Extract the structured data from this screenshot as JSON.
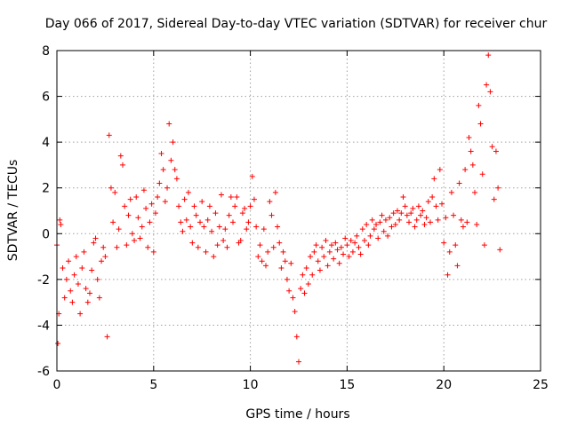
{
  "chart_data": {
    "type": "scatter",
    "title": "Day 066 of 2017, Sidereal Day-to-day VTEC variation (SDTVAR) for receiver chur",
    "xlabel": "GPS time / hours",
    "ylabel": "SDTVAR / TECUs",
    "xlim": [
      0,
      25
    ],
    "ylim": [
      -6,
      8
    ],
    "x_ticks": [
      0,
      5,
      10,
      15,
      20,
      25
    ],
    "y_ticks": [
      -6,
      -4,
      -2,
      0,
      2,
      4,
      6,
      8
    ],
    "x_tick_labels": [
      "0",
      "5",
      "10",
      "15",
      "20",
      "25"
    ],
    "y_tick_labels": [
      "-6",
      "-4",
      "-2",
      "0",
      "2",
      "4",
      "6",
      "8"
    ],
    "grid": true,
    "marker": "+",
    "color": "#ff0000",
    "series": [
      {
        "name": "SDTVAR",
        "x": [
          0.0,
          0.05,
          0.1,
          0.15,
          0.2,
          0.3,
          0.4,
          0.5,
          0.6,
          0.7,
          0.8,
          0.9,
          1.0,
          1.1,
          1.2,
          1.3,
          1.4,
          1.5,
          1.6,
          1.7,
          1.8,
          1.9,
          2.0,
          2.1,
          2.2,
          2.3,
          2.4,
          2.5,
          2.6,
          2.7,
          2.8,
          2.9,
          3.0,
          3.1,
          3.2,
          3.3,
          3.4,
          3.5,
          3.6,
          3.7,
          3.8,
          3.9,
          4.0,
          4.1,
          4.2,
          4.3,
          4.4,
          4.5,
          4.6,
          4.7,
          4.8,
          4.9,
          5.0,
          5.1,
          5.2,
          5.3,
          5.4,
          5.5,
          5.6,
          5.7,
          5.8,
          5.9,
          6.0,
          6.1,
          6.2,
          6.3,
          6.4,
          6.5,
          6.6,
          6.7,
          6.8,
          6.9,
          7.0,
          7.1,
          7.2,
          7.3,
          7.4,
          7.5,
          7.6,
          7.7,
          7.8,
          7.9,
          8.0,
          8.1,
          8.2,
          8.3,
          8.4,
          8.5,
          8.6,
          8.7,
          8.8,
          8.9,
          9.0,
          9.1,
          9.2,
          9.3,
          9.4,
          9.5,
          9.6,
          9.7,
          9.8,
          9.9,
          10.0,
          10.1,
          10.2,
          10.3,
          10.4,
          10.5,
          10.6,
          10.7,
          10.8,
          10.9,
          11.0,
          11.1,
          11.2,
          11.3,
          11.4,
          11.5,
          11.6,
          11.7,
          11.8,
          11.9,
          12.0,
          12.1,
          12.2,
          12.3,
          12.4,
          12.5,
          12.6,
          12.7,
          12.8,
          12.9,
          13.0,
          13.1,
          13.2,
          13.3,
          13.4,
          13.5,
          13.6,
          13.7,
          13.8,
          13.9,
          14.0,
          14.1,
          14.2,
          14.3,
          14.4,
          14.5,
          14.6,
          14.7,
          14.8,
          14.9,
          15.0,
          15.1,
          15.2,
          15.3,
          15.4,
          15.5,
          15.6,
          15.7,
          15.8,
          15.9,
          16.0,
          16.1,
          16.2,
          16.3,
          16.4,
          16.5,
          16.6,
          16.7,
          16.8,
          16.9,
          17.0,
          17.1,
          17.2,
          17.3,
          17.4,
          17.5,
          17.6,
          17.7,
          17.8,
          17.9,
          18.0,
          18.1,
          18.2,
          18.3,
          18.4,
          18.5,
          18.6,
          18.7,
          18.8,
          18.9,
          19.0,
          19.1,
          19.2,
          19.3,
          19.4,
          19.5,
          19.6,
          19.7,
          19.8,
          19.9,
          20.0,
          20.1,
          20.2,
          20.3,
          20.4,
          20.5,
          20.6,
          20.7,
          20.8,
          20.9,
          21.0,
          21.1,
          21.2,
          21.3,
          21.4,
          21.5,
          21.6,
          21.7,
          21.8,
          21.9,
          22.0,
          22.1,
          22.2,
          22.3,
          22.4,
          22.5,
          22.6,
          22.7,
          22.8,
          22.9
        ],
        "y": [
          -0.5,
          -4.8,
          -3.5,
          0.6,
          0.4,
          -1.5,
          -2.8,
          -2.0,
          -1.2,
          -2.5,
          -3.0,
          -1.8,
          -1.0,
          -2.2,
          -3.5,
          -1.5,
          -0.8,
          -2.4,
          -3.0,
          -2.6,
          -1.6,
          -0.4,
          -0.2,
          -2.0,
          -2.8,
          -1.2,
          -0.6,
          -1.0,
          -4.5,
          4.3,
          2.0,
          0.5,
          1.8,
          -0.6,
          0.2,
          3.4,
          3.0,
          1.2,
          -0.5,
          0.8,
          1.5,
          0.0,
          -0.3,
          1.6,
          0.7,
          -0.2,
          0.3,
          1.9,
          1.1,
          -0.6,
          0.5,
          1.3,
          -0.8,
          0.9,
          1.6,
          2.2,
          3.5,
          2.8,
          1.4,
          2.0,
          4.8,
          3.2,
          4.0,
          2.8,
          2.4,
          1.2,
          0.5,
          0.1,
          1.5,
          0.6,
          1.8,
          0.3,
          -0.4,
          1.2,
          0.8,
          -0.6,
          0.5,
          1.4,
          0.3,
          -0.8,
          0.6,
          1.2,
          0.1,
          -1.0,
          0.9,
          -0.5,
          0.3,
          1.7,
          -0.3,
          0.2,
          -0.6,
          0.8,
          1.6,
          0.5,
          1.2,
          1.6,
          -0.4,
          -0.3,
          0.9,
          1.1,
          0.2,
          0.5,
          1.2,
          2.5,
          1.5,
          0.3,
          -1.0,
          -0.5,
          -1.2,
          0.2,
          -1.4,
          -0.8,
          1.4,
          0.8,
          -0.6,
          1.8,
          0.3,
          -0.4,
          -1.5,
          -0.8,
          -1.2,
          -2.0,
          -2.5,
          -1.3,
          -2.8,
          -3.4,
          -4.5,
          -5.6,
          -2.4,
          -1.8,
          -2.6,
          -1.5,
          -2.2,
          -1.0,
          -1.8,
          -0.8,
          -0.5,
          -1.2,
          -1.6,
          -0.6,
          -1.0,
          -0.3,
          -1.4,
          -0.8,
          -0.5,
          -1.1,
          -0.4,
          -0.7,
          -1.3,
          -0.6,
          -0.9,
          -0.2,
          -0.5,
          -1.0,
          -0.3,
          -0.8,
          -0.4,
          -0.1,
          -0.6,
          -0.9,
          0.2,
          -0.3,
          0.4,
          -0.5,
          -0.1,
          0.6,
          0.2,
          0.4,
          -0.2,
          0.5,
          0.8,
          0.1,
          0.6,
          -0.1,
          0.7,
          0.3,
          0.9,
          0.4,
          1.0,
          0.6,
          0.9,
          1.6,
          1.2,
          0.8,
          0.5,
          0.9,
          1.1,
          0.3,
          0.6,
          1.2,
          0.8,
          1.0,
          0.4,
          0.7,
          1.4,
          0.5,
          1.6,
          2.4,
          1.2,
          0.6,
          2.8,
          1.3,
          -0.4,
          0.7,
          -1.8,
          -0.8,
          1.8,
          0.8,
          -0.5,
          -1.4,
          2.2,
          0.6,
          0.3,
          2.8,
          0.5,
          4.2,
          3.6,
          3.0,
          1.8,
          0.4,
          5.6,
          4.8,
          2.6,
          -0.5,
          6.5,
          7.8,
          6.2,
          3.8,
          1.5,
          3.6,
          2.0,
          -0.7
        ]
      }
    ]
  }
}
